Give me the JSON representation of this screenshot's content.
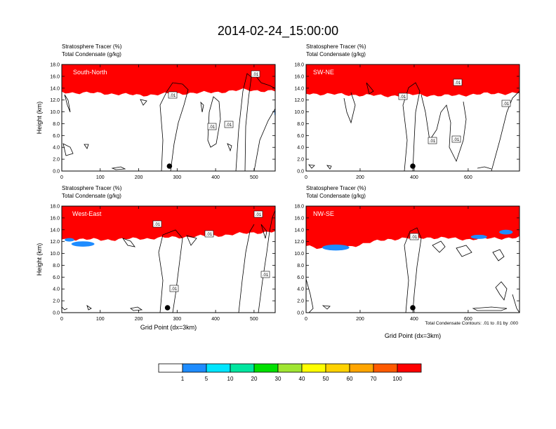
{
  "figure_title": "2014-02-24_15:00:00",
  "footnote": "Total Condensate Contours: .01 to .01 by .000",
  "colorbar": {
    "labels": [
      "1",
      "5",
      "10",
      "20",
      "30",
      "40",
      "50",
      "60",
      "70",
      "100"
    ],
    "colors": [
      "#ffffff",
      "#1e8cff",
      "#00e5ff",
      "#00e6a0",
      "#00e000",
      "#a0e632",
      "#ffff00",
      "#ffd200",
      "#ffa500",
      "#ff5a00",
      "#ff0000"
    ]
  },
  "chart_data": [
    {
      "type": "heatmap",
      "panel_label": "South-North",
      "subtitle_1": "Stratosphere Tracer   (%)",
      "subtitle_2": "Total Condensate   (g/kg)",
      "ylabel": "Height (km)",
      "xlabel": "",
      "xlim": [
        0,
        555
      ],
      "ylim": [
        0,
        18
      ],
      "x_ticks": [
        "0",
        "100",
        "200",
        "300",
        "400",
        "500"
      ],
      "x_tick_values": [
        0,
        100,
        200,
        300,
        400,
        500
      ],
      "y_ticks": [
        "0.0",
        "2.0",
        "4.0",
        "6.0",
        "8.0",
        "10.0",
        "12.0",
        "14.0",
        "16.0",
        "18.0"
      ],
      "contour_labels": [
        ".01",
        ".01",
        ".01",
        ".01"
      ],
      "marker_x": 280,
      "tracer_base_km": [
        [
          0,
          15.2
        ],
        [
          120,
          15.0
        ],
        [
          200,
          14.7
        ],
        [
          300,
          15.0
        ],
        [
          400,
          15.2
        ],
        [
          470,
          15.6
        ],
        [
          555,
          15.4
        ]
      ],
      "blue_blobs": [
        [
          555,
          9.9,
          4,
          1.2
        ]
      ]
    },
    {
      "type": "heatmap",
      "panel_label": "SW-NE",
      "subtitle_1": "Stratosphere Tracer   (%)",
      "subtitle_2": "Total Condensate   (g/kg)",
      "ylabel": "",
      "xlabel": "",
      "xlim": [
        0,
        790
      ],
      "ylim": [
        0,
        18
      ],
      "x_ticks": [
        "0",
        "200",
        "400",
        "600"
      ],
      "x_tick_values": [
        0,
        200,
        400,
        600
      ],
      "y_ticks": [
        "0.0",
        "2.0",
        "4.0",
        "6.0",
        "8.0",
        "10.0",
        "12.0",
        "14.0",
        "16.0",
        "18.0"
      ],
      "contour_labels": [
        ".01",
        ".01",
        ".01",
        ".01",
        ".01"
      ],
      "marker_x": 395,
      "tracer_base_km": [
        [
          0,
          15.0
        ],
        [
          150,
          14.8
        ],
        [
          300,
          14.6
        ],
        [
          400,
          14.8
        ],
        [
          520,
          14.6
        ],
        [
          640,
          14.9
        ],
        [
          790,
          15.1
        ]
      ],
      "blue_blobs": []
    },
    {
      "type": "heatmap",
      "panel_label": "West-East",
      "subtitle_1": "Stratosphere Tracer   (%)",
      "subtitle_2": "Total Condensate   (g/kg)",
      "ylabel": "Height (km)",
      "xlabel": "Grid Point (dx=3km)",
      "xlim": [
        0,
        555
      ],
      "ylim": [
        0,
        18
      ],
      "x_ticks": [
        "0",
        "100",
        "200",
        "300",
        "400",
        "500"
      ],
      "x_tick_values": [
        0,
        100,
        200,
        300,
        400,
        500
      ],
      "y_ticks": [
        "0.0",
        "2.0",
        "4.0",
        "6.0",
        "8.0",
        "10.0",
        "12.0",
        "14.0",
        "16.0",
        "18.0"
      ],
      "contour_labels": [
        ".01",
        ".01",
        ".01",
        ".01",
        ".01"
      ],
      "marker_x": 275,
      "tracer_base_km": [
        [
          0,
          14.4
        ],
        [
          100,
          14.2
        ],
        [
          250,
          14.5
        ],
        [
          400,
          14.9
        ],
        [
          500,
          15.4
        ],
        [
          555,
          15.6
        ]
      ],
      "blue_blobs": [
        [
          55,
          11.6,
          60,
          0.9
        ],
        [
          20,
          12.3,
          25,
          0.6
        ]
      ]
    },
    {
      "type": "heatmap",
      "panel_label": "NW-SE",
      "subtitle_1": "Stratosphere Tracer   (%)",
      "subtitle_2": "Total Condensate   (g/kg)",
      "ylabel": "",
      "xlabel": "Grid Point (dx=3km)",
      "xlim": [
        0,
        790
      ],
      "ylim": [
        0,
        18
      ],
      "x_ticks": [
        "0",
        "200",
        "400",
        "600"
      ],
      "x_tick_values": [
        0,
        200,
        400,
        600
      ],
      "y_ticks": [
        "0.0",
        "2.0",
        "4.0",
        "6.0",
        "8.0",
        "10.0",
        "12.0",
        "14.0",
        "16.0",
        "18.0"
      ],
      "contour_labels": [
        ".01"
      ],
      "marker_x": 395,
      "tracer_base_km": [
        [
          0,
          13.2
        ],
        [
          100,
          12.6
        ],
        [
          200,
          13.4
        ],
        [
          300,
          14.3
        ],
        [
          450,
          14.6
        ],
        [
          600,
          14.3
        ],
        [
          790,
          14.6
        ]
      ],
      "blue_blobs": [
        [
          110,
          11.0,
          100,
          1.0
        ],
        [
          640,
          12.8,
          60,
          0.7
        ],
        [
          740,
          13.6,
          50,
          0.8
        ]
      ]
    }
  ]
}
